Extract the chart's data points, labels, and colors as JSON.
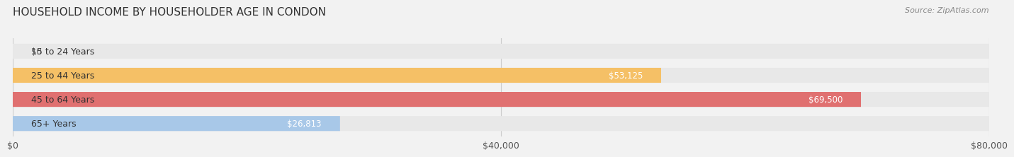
{
  "title": "HOUSEHOLD INCOME BY HOUSEHOLDER AGE IN CONDON",
  "source": "Source: ZipAtlas.com",
  "categories": [
    "15 to 24 Years",
    "25 to 44 Years",
    "45 to 64 Years",
    "65+ Years"
  ],
  "values": [
    0,
    53125,
    69500,
    26813
  ],
  "bar_colors": [
    "#f08080",
    "#f5c066",
    "#e07070",
    "#a8c8e8"
  ],
  "value_labels": [
    "$0",
    "$53,125",
    "$69,500",
    "$26,813"
  ],
  "xlim": [
    0,
    80000
  ],
  "xtick_values": [
    0,
    40000,
    80000
  ],
  "xtick_labels": [
    "$0",
    "$40,000",
    "$80,000"
  ],
  "background_color": "#f2f2f2",
  "bar_bg_color": "#e8e8e8",
  "title_fontsize": 11,
  "label_fontsize": 9,
  "value_fontsize": 8.5,
  "source_fontsize": 8
}
